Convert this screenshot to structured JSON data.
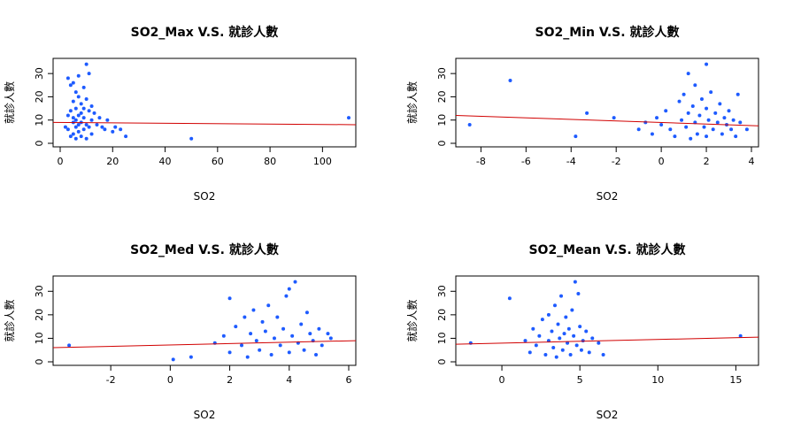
{
  "colors": {
    "points": "#1e5bff",
    "fit_line": "#d10000",
    "axis": "#000000"
  },
  "chart_data": [
    {
      "type": "scatter",
      "title": "SO2_Max V.S. 就診人數",
      "xlabel": "SO2",
      "ylabel": "就診人數",
      "xlim": [
        0,
        110
      ],
      "ylim": [
        0,
        35
      ],
      "xticks": [
        0,
        20,
        40,
        60,
        80,
        100
      ],
      "yticks": [
        0,
        10,
        20,
        30
      ],
      "fit_line": [
        [
          0,
          9
        ],
        [
          110,
          8
        ]
      ],
      "points": [
        [
          2,
          7
        ],
        [
          3,
          28
        ],
        [
          3,
          12
        ],
        [
          3,
          6
        ],
        [
          4,
          25
        ],
        [
          4,
          14
        ],
        [
          4,
          3
        ],
        [
          5,
          26
        ],
        [
          5,
          18
        ],
        [
          5,
          9
        ],
        [
          5,
          4
        ],
        [
          5,
          11
        ],
        [
          6,
          22
        ],
        [
          6,
          15
        ],
        [
          6,
          7
        ],
        [
          6,
          2
        ],
        [
          6,
          10
        ],
        [
          7,
          29
        ],
        [
          7,
          20
        ],
        [
          7,
          12
        ],
        [
          7,
          5
        ],
        [
          7,
          8
        ],
        [
          8,
          17
        ],
        [
          8,
          13
        ],
        [
          8,
          3
        ],
        [
          8,
          9
        ],
        [
          9,
          24
        ],
        [
          9,
          11
        ],
        [
          9,
          6
        ],
        [
          9,
          15
        ],
        [
          10,
          34
        ],
        [
          10,
          19
        ],
        [
          10,
          8
        ],
        [
          10,
          2
        ],
        [
          11,
          30
        ],
        [
          11,
          14
        ],
        [
          11,
          7
        ],
        [
          12,
          16
        ],
        [
          12,
          10
        ],
        [
          12,
          4
        ],
        [
          13,
          13
        ],
        [
          14,
          8
        ],
        [
          15,
          11
        ],
        [
          16,
          7
        ],
        [
          17,
          6
        ],
        [
          18,
          10
        ],
        [
          20,
          5
        ],
        [
          21,
          7
        ],
        [
          23,
          6
        ],
        [
          25,
          3
        ],
        [
          50,
          2
        ],
        [
          110,
          11
        ]
      ]
    },
    {
      "type": "scatter",
      "title": "SO2_Min V.S. 就診人數",
      "xlabel": "SO2",
      "ylabel": "就診人數",
      "xlim": [
        -8.8,
        4
      ],
      "ylim": [
        0,
        35
      ],
      "xticks": [
        -8,
        -6,
        -4,
        -2,
        0,
        2,
        4
      ],
      "yticks": [
        0,
        10,
        20,
        30
      ],
      "fit_line": [
        [
          -8.8,
          12
        ],
        [
          4,
          7.5
        ]
      ],
      "points": [
        [
          -8.5,
          8
        ],
        [
          -6.7,
          27
        ],
        [
          -3.3,
          13
        ],
        [
          -3.8,
          3
        ],
        [
          -2.1,
          11
        ],
        [
          -1,
          6
        ],
        [
          -0.7,
          9
        ],
        [
          -0.4,
          4
        ],
        [
          -0.2,
          11
        ],
        [
          0,
          8
        ],
        [
          0.2,
          14
        ],
        [
          0.4,
          6
        ],
        [
          0.6,
          3
        ],
        [
          0.8,
          18
        ],
        [
          0.9,
          10
        ],
        [
          1,
          21
        ],
        [
          1.1,
          7
        ],
        [
          1.2,
          30
        ],
        [
          1.2,
          13
        ],
        [
          1.3,
          2
        ],
        [
          1.4,
          16
        ],
        [
          1.5,
          25
        ],
        [
          1.5,
          9
        ],
        [
          1.6,
          4
        ],
        [
          1.7,
          12
        ],
        [
          1.8,
          19
        ],
        [
          1.9,
          7
        ],
        [
          2,
          34
        ],
        [
          2,
          15
        ],
        [
          2,
          3
        ],
        [
          2.1,
          10
        ],
        [
          2.2,
          22
        ],
        [
          2.3,
          6
        ],
        [
          2.4,
          13
        ],
        [
          2.5,
          9
        ],
        [
          2.6,
          17
        ],
        [
          2.7,
          4
        ],
        [
          2.8,
          11
        ],
        [
          2.9,
          8
        ],
        [
          3,
          14
        ],
        [
          3.1,
          6
        ],
        [
          3.2,
          10
        ],
        [
          3.3,
          3
        ],
        [
          3.4,
          21
        ],
        [
          3.5,
          9
        ],
        [
          3.8,
          6
        ]
      ]
    },
    {
      "type": "scatter",
      "title": "SO2_Med V.S. 就診人數",
      "xlabel": "SO2",
      "ylabel": "就診人數",
      "xlim": [
        -3.7,
        6
      ],
      "ylim": [
        0,
        35
      ],
      "xticks": [
        -2,
        0,
        2,
        4,
        6
      ],
      "yticks": [
        0,
        10,
        20,
        30
      ],
      "fit_line": [
        [
          -3.7,
          6
        ],
        [
          6,
          9
        ]
      ],
      "points": [
        [
          -3.4,
          7
        ],
        [
          0.1,
          1
        ],
        [
          0.7,
          2
        ],
        [
          1.5,
          8
        ],
        [
          1.8,
          11
        ],
        [
          2,
          27
        ],
        [
          2,
          4
        ],
        [
          2.2,
          15
        ],
        [
          2.4,
          7
        ],
        [
          2.5,
          19
        ],
        [
          2.6,
          2
        ],
        [
          2.7,
          12
        ],
        [
          2.8,
          22
        ],
        [
          2.9,
          9
        ],
        [
          3,
          5
        ],
        [
          3.1,
          17
        ],
        [
          3.2,
          13
        ],
        [
          3.3,
          24
        ],
        [
          3.4,
          3
        ],
        [
          3.5,
          10
        ],
        [
          3.6,
          19
        ],
        [
          3.7,
          7
        ],
        [
          3.8,
          14
        ],
        [
          3.9,
          28
        ],
        [
          4,
          4
        ],
        [
          4,
          31
        ],
        [
          4.1,
          11
        ],
        [
          4.2,
          34
        ],
        [
          4.3,
          8
        ],
        [
          4.4,
          16
        ],
        [
          4.5,
          5
        ],
        [
          4.6,
          21
        ],
        [
          4.7,
          12
        ],
        [
          4.8,
          9
        ],
        [
          4.9,
          3
        ],
        [
          5,
          14
        ],
        [
          5.1,
          7
        ],
        [
          5.3,
          12
        ],
        [
          5.4,
          10
        ]
      ]
    },
    {
      "type": "scatter",
      "title": "SO2_Mean V.S. 就診人數",
      "xlabel": "SO2",
      "ylabel": "就診人數",
      "xlim": [
        -2.5,
        16
      ],
      "ylim": [
        0,
        35
      ],
      "xticks": [
        0,
        5,
        10,
        15
      ],
      "yticks": [
        0,
        10,
        20,
        30
      ],
      "fit_line": [
        [
          -2.5,
          7.5
        ],
        [
          16,
          10.5
        ]
      ],
      "points": [
        [
          -2,
          8
        ],
        [
          0.5,
          27
        ],
        [
          1.5,
          9
        ],
        [
          1.8,
          4
        ],
        [
          2,
          14
        ],
        [
          2.2,
          7
        ],
        [
          2.4,
          11
        ],
        [
          2.6,
          18
        ],
        [
          2.8,
          3
        ],
        [
          3,
          20
        ],
        [
          3,
          9
        ],
        [
          3.2,
          13
        ],
        [
          3.3,
          6
        ],
        [
          3.4,
          24
        ],
        [
          3.5,
          2
        ],
        [
          3.6,
          16
        ],
        [
          3.7,
          10
        ],
        [
          3.8,
          28
        ],
        [
          3.9,
          5
        ],
        [
          4,
          12
        ],
        [
          4.1,
          19
        ],
        [
          4.2,
          8
        ],
        [
          4.3,
          14
        ],
        [
          4.4,
          3
        ],
        [
          4.5,
          22
        ],
        [
          4.6,
          11
        ],
        [
          4.7,
          34
        ],
        [
          4.8,
          7
        ],
        [
          4.9,
          29
        ],
        [
          5,
          15
        ],
        [
          5.1,
          5
        ],
        [
          5.2,
          9
        ],
        [
          5.4,
          13
        ],
        [
          5.6,
          4
        ],
        [
          5.8,
          10
        ],
        [
          6.2,
          8
        ],
        [
          6.5,
          3
        ],
        [
          15.3,
          11
        ]
      ]
    }
  ]
}
